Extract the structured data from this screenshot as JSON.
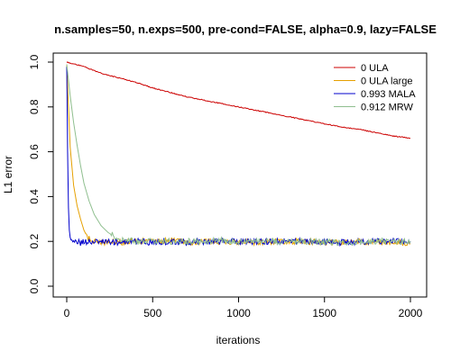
{
  "chart_data": {
    "type": "line",
    "title": "n.samples=50, n.exps=500, pre-cond=FALSE, alpha=0.9, lazy=FALSE",
    "xlabel": "iterations",
    "ylabel": "L1 error",
    "xlim": [
      0,
      2000
    ],
    "ylim": [
      0,
      1.0
    ],
    "x_ticks": [
      0,
      500,
      1000,
      1500,
      2000
    ],
    "y_ticks": [
      0.0,
      0.2,
      0.4,
      0.6,
      0.8,
      1.0
    ],
    "x_tick_labels": [
      "0",
      "500",
      "1000",
      "1500",
      "2000"
    ],
    "y_tick_labels": [
      "0.0",
      "0.2",
      "0.4",
      "0.6",
      "0.8",
      "1.0"
    ],
    "grid": false,
    "legend_position": "top-right",
    "series": [
      {
        "name": "0 ULA",
        "color": "#cc0000",
        "x": [
          0,
          50,
          100,
          200,
          300,
          400,
          500,
          600,
          700,
          800,
          900,
          1000,
          1100,
          1200,
          1300,
          1400,
          1500,
          1600,
          1700,
          1800,
          1900,
          2000
        ],
        "y": [
          1.0,
          0.99,
          0.98,
          0.95,
          0.93,
          0.91,
          0.885,
          0.865,
          0.845,
          0.83,
          0.815,
          0.8,
          0.785,
          0.77,
          0.755,
          0.74,
          0.725,
          0.71,
          0.7,
          0.685,
          0.67,
          0.66
        ]
      },
      {
        "name": "0 ULA large",
        "color": "#e6a000",
        "x": [
          0,
          10,
          20,
          40,
          60,
          80,
          100,
          120,
          140,
          160,
          200,
          250,
          300,
          350,
          400,
          500,
          600,
          700,
          800,
          900,
          1000,
          1200,
          1400,
          1600,
          1800,
          2000
        ],
        "y": [
          0.99,
          0.8,
          0.62,
          0.45,
          0.36,
          0.3,
          0.25,
          0.22,
          0.205,
          0.2,
          0.195,
          0.2,
          0.2,
          0.195,
          0.2,
          0.2,
          0.205,
          0.195,
          0.2,
          0.2,
          0.195,
          0.2,
          0.2,
          0.195,
          0.2,
          0.19
        ]
      },
      {
        "name": "0.993 MALA",
        "color": "#0000cc",
        "x": [
          0,
          5,
          10,
          15,
          20,
          30,
          40,
          60,
          80,
          100,
          150,
          200,
          300,
          400,
          500,
          600,
          700,
          800,
          900,
          1000,
          1200,
          1400,
          1600,
          1800,
          2000
        ],
        "y": [
          0.98,
          0.6,
          0.35,
          0.25,
          0.215,
          0.2,
          0.195,
          0.2,
          0.19,
          0.2,
          0.195,
          0.2,
          0.195,
          0.2,
          0.195,
          0.2,
          0.195,
          0.2,
          0.2,
          0.2,
          0.2,
          0.2,
          0.195,
          0.2,
          0.2
        ]
      },
      {
        "name": "0.912 MRW",
        "color": "#8fbf8f",
        "x": [
          0,
          20,
          40,
          60,
          80,
          100,
          130,
          160,
          200,
          240,
          280,
          320,
          360,
          400,
          500,
          600,
          700,
          800,
          900,
          1000,
          1200,
          1400,
          1600,
          1800,
          2000
        ],
        "y": [
          0.99,
          0.85,
          0.73,
          0.63,
          0.54,
          0.46,
          0.38,
          0.32,
          0.27,
          0.24,
          0.22,
          0.21,
          0.205,
          0.2,
          0.2,
          0.2,
          0.2,
          0.2,
          0.205,
          0.2,
          0.2,
          0.2,
          0.195,
          0.2,
          0.2
        ]
      }
    ]
  }
}
